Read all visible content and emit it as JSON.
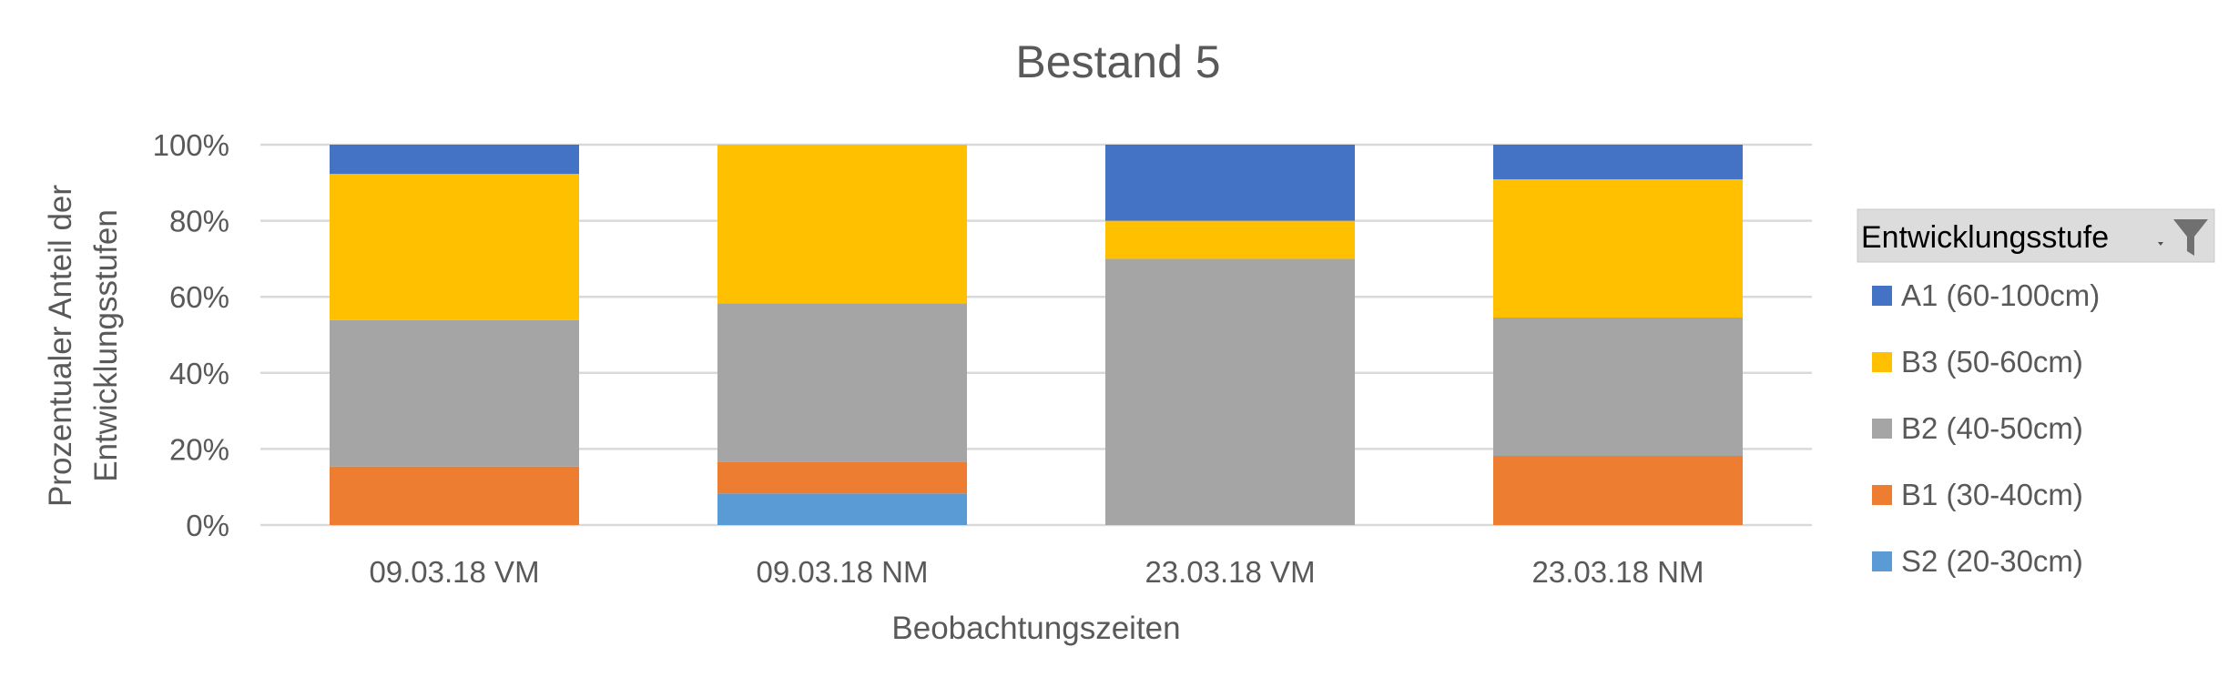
{
  "chart_data": {
    "type": "bar",
    "stacked": true,
    "percent_stacked": true,
    "title": "Bestand 5",
    "xlabel": "Beobachtungszeiten",
    "ylabel_lines": [
      "Prozentualer Anteil der",
      "Entwicklungsstufen"
    ],
    "categories": [
      "09.03.18 VM",
      "09.03.18 NM",
      "23.03.18 VM",
      "23.03.18 NM"
    ],
    "ylim": [
      0,
      100
    ],
    "yticks": [
      0,
      20,
      40,
      60,
      80,
      100
    ],
    "ytick_labels": [
      "0%",
      "20%",
      "40%",
      "60%",
      "80%",
      "100%"
    ],
    "grid": true,
    "legend_placement": "right",
    "legend_title": "Entwicklungsstufe",
    "legend_order": [
      "A1 (60-100cm)",
      "B3 (50-60cm)",
      "B2 (40-50cm)",
      "B1 (30-40cm)",
      "S2 (20-30cm)"
    ],
    "series": [
      {
        "name": "S2 (20-30cm)",
        "color": "#5B9BD5",
        "values": [
          0,
          8.3,
          0,
          0
        ]
      },
      {
        "name": "B1 (30-40cm)",
        "color": "#ED7D31",
        "values": [
          15.4,
          8.3,
          0,
          18.2
        ]
      },
      {
        "name": "B2 (40-50cm)",
        "color": "#A5A5A5",
        "values": [
          38.5,
          41.7,
          70,
          36.4
        ]
      },
      {
        "name": "B3 (50-60cm)",
        "color": "#FFC000",
        "values": [
          38.5,
          41.7,
          10,
          36.4
        ]
      },
      {
        "name": "A1 (60-100cm)",
        "color": "#4472C4",
        "values": [
          7.7,
          0,
          20,
          9.1
        ]
      }
    ]
  }
}
